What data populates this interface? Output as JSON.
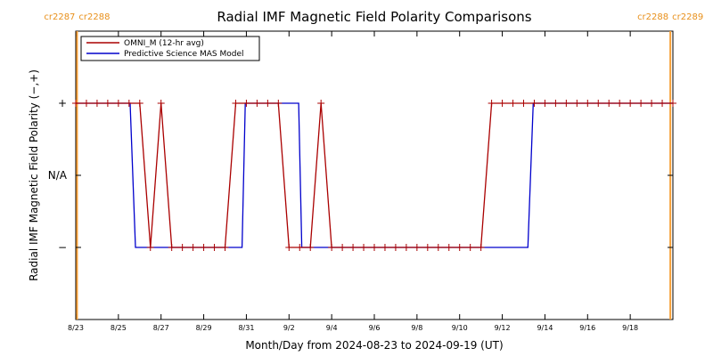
{
  "chart_data": {
    "type": "line",
    "title": "Radial IMF Magnetic Field Polarity Comparisons",
    "xlabel": "Month/Day from 2024-08-23 to 2024-09-19 (UT)",
    "ylabel": "Radial IMF Magnetic Field Polarity (−,+)",
    "xlim": [
      0,
      28
    ],
    "ylim": [
      -2,
      2
    ],
    "x_ticks": [
      {
        "day": 0,
        "label": "8/23"
      },
      {
        "day": 2,
        "label": "8/25"
      },
      {
        "day": 4,
        "label": "8/27"
      },
      {
        "day": 6,
        "label": "8/29"
      },
      {
        "day": 8,
        "label": "8/31"
      },
      {
        "day": 10,
        "label": "9/2"
      },
      {
        "day": 12,
        "label": "9/4"
      },
      {
        "day": 14,
        "label": "9/6"
      },
      {
        "day": 16,
        "label": "9/8"
      },
      {
        "day": 18,
        "label": "9/10"
      },
      {
        "day": 20,
        "label": "9/12"
      },
      {
        "day": 22,
        "label": "9/14"
      },
      {
        "day": 24,
        "label": "9/16"
      },
      {
        "day": 26,
        "label": "9/18"
      }
    ],
    "y_ticks": [
      {
        "value": 1,
        "label": "+"
      },
      {
        "value": 0,
        "label": "N/A"
      },
      {
        "value": -1,
        "label": "−"
      }
    ],
    "carrington_markers": [
      {
        "day": 0.06,
        "left": "cr2287",
        "right": "cr2288"
      },
      {
        "day": 27.88,
        "left": "cr2288",
        "right": "cr2289"
      }
    ],
    "legend": {
      "position": "top-left"
    },
    "series": [
      {
        "name": "OMNI_M (12-hr avg)",
        "color": "#aa0000",
        "markers": true,
        "x": [
          0.0,
          0.5,
          1.0,
          1.5,
          2.0,
          2.5,
          3.0,
          3.5,
          4.0,
          4.5,
          5.0,
          5.5,
          6.0,
          6.5,
          7.0,
          7.5,
          8.0,
          8.5,
          9.0,
          9.5,
          10.0,
          10.5,
          11.0,
          11.5,
          12.0,
          12.5,
          13.0,
          13.5,
          14.0,
          14.5,
          15.0,
          15.5,
          16.0,
          16.5,
          17.0,
          17.5,
          18.0,
          18.5,
          19.0,
          19.5,
          20.0,
          20.5,
          21.0,
          21.5,
          22.0,
          22.5,
          23.0,
          23.5,
          24.0,
          24.5,
          25.0,
          25.5,
          26.0,
          26.5,
          27.0,
          27.5,
          28.0
        ],
        "y": [
          1,
          1,
          1,
          1,
          1,
          1,
          1,
          -1,
          1,
          -1,
          -1,
          -1,
          -1,
          -1,
          -1,
          1,
          1,
          1,
          1,
          1,
          -1,
          -1,
          -1,
          1,
          -1,
          -1,
          -1,
          -1,
          -1,
          -1,
          -1,
          -1,
          -1,
          -1,
          -1,
          -1,
          -1,
          -1,
          -1,
          1,
          1,
          1,
          1,
          1,
          1,
          1,
          1,
          1,
          1,
          1,
          1,
          1,
          1,
          1,
          1,
          1,
          1
        ]
      },
      {
        "name": "Predictive Science MAS Model",
        "color": "#0000cc",
        "markers": false,
        "x": [
          0,
          2.55,
          2.8,
          7.8,
          7.95,
          10.45,
          10.6,
          21.2,
          21.45,
          28
        ],
        "y": [
          1,
          1,
          -1,
          -1,
          1,
          1,
          -1,
          -1,
          1,
          1
        ]
      }
    ]
  }
}
